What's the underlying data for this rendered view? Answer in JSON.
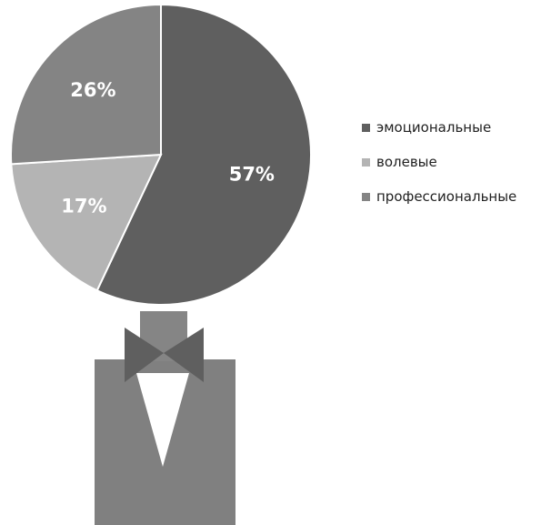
{
  "chart_data": {
    "type": "pie",
    "slices": [
      {
        "label": "эмоциональные",
        "value": 57,
        "value_label": "57%",
        "color": "#5f5f5f"
      },
      {
        "label": "волевые",
        "value": 17,
        "value_label": "17%",
        "color": "#b4b4b4"
      },
      {
        "label": "профессиональные",
        "value": 26,
        "value_label": "26%",
        "color": "#848484"
      }
    ],
    "start_angle_deg": 0,
    "direction": "clockwise",
    "legend_position": "right",
    "decoration": {
      "body_color": "#808080",
      "neck_color": "#858585",
      "bowtie_color": "#5f5f5f",
      "shirt_color": "#ffffff"
    }
  }
}
